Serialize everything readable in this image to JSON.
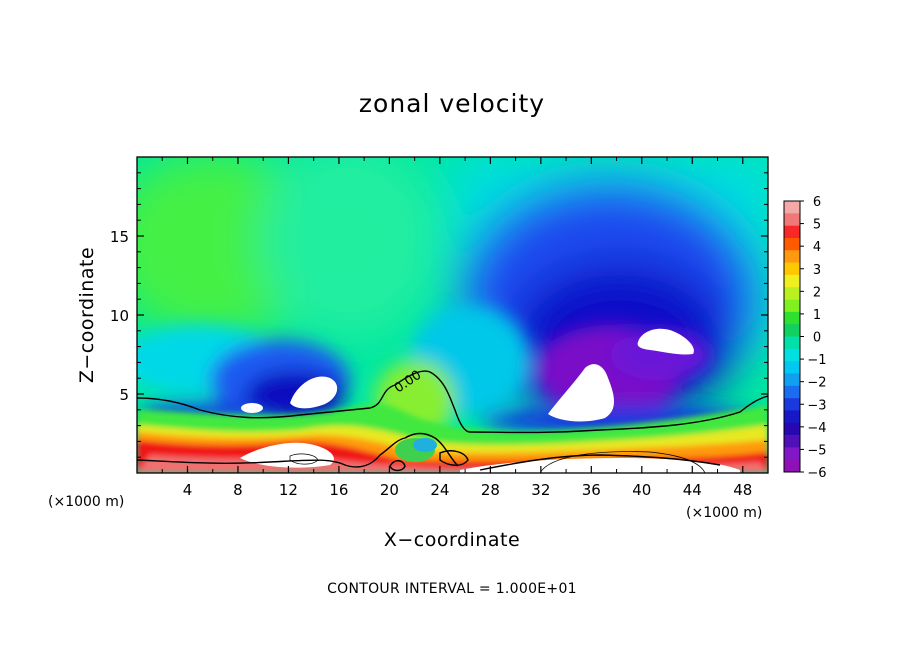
{
  "chart_data": {
    "type": "heatmap",
    "title": "zonal velocity",
    "xlabel": "X−coordinate",
    "ylabel": "Z−coordinate",
    "x_unit": "(×1000 m)",
    "z_unit": "(×1000 m)",
    "xlim": [
      0,
      50
    ],
    "ylim": [
      0,
      20
    ],
    "x_ticks": [
      "4",
      "8",
      "12",
      "16",
      "20",
      "24",
      "28",
      "32",
      "36",
      "40",
      "44",
      "48"
    ],
    "y_ticks": [
      "5",
      "10",
      "15"
    ],
    "colorbar": {
      "levels": [
        "6",
        "5",
        "4",
        "3",
        "2",
        "1",
        "0",
        "−1",
        "−2",
        "−3",
        "−4",
        "−5",
        "−6"
      ],
      "range": [
        -6,
        6
      ]
    },
    "contour_label": "0.00",
    "contour_interval_text": "CONTOUR INTERVAL = 1.000E+01",
    "features": [
      {
        "x": 7,
        "z": 12,
        "value": 1.0
      },
      {
        "x": 18,
        "z": 16,
        "value": 0.2
      },
      {
        "x": 40,
        "z": 10,
        "value": -5.0
      },
      {
        "x": 35,
        "z": 7,
        "value": -6.0
      },
      {
        "x": 14,
        "z": 5.5,
        "value": -5.0
      },
      {
        "x": 22,
        "z": 4,
        "value": 1.2
      },
      {
        "x": 10,
        "z": 1.5,
        "value": 4.5
      }
    ],
    "grid": false,
    "legend_placement": "right"
  }
}
